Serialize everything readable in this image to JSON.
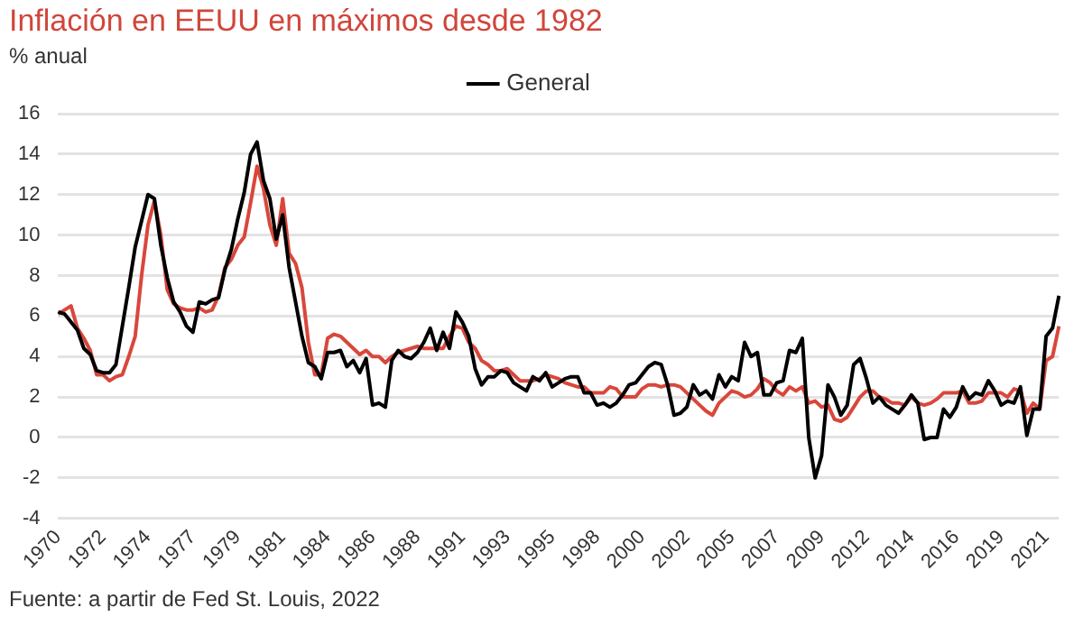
{
  "chart_data": {
    "type": "line",
    "title": "Inflación en EEUU en máximos desde 1982",
    "ylabel": "% anual",
    "annotations": [
      "Fuente: a partir de Fed St. Louis, 2022"
    ],
    "categories": [
      "1970",
      null,
      null,
      null,
      null,
      null,
      null,
      "1972",
      null,
      null,
      null,
      null,
      null,
      null,
      "1974",
      null,
      null,
      null,
      null,
      null,
      null,
      "1977",
      null,
      null,
      null,
      null,
      null,
      null,
      "1979",
      null,
      null,
      null,
      null,
      null,
      null,
      "1981",
      null,
      null,
      null,
      null,
      null,
      null,
      "1984",
      null,
      null,
      null,
      null,
      null,
      null,
      "1986",
      null,
      null,
      null,
      null,
      null,
      null,
      "1988",
      null,
      null,
      null,
      null,
      null,
      null,
      "1991",
      null,
      null,
      null,
      null,
      null,
      null,
      "1993",
      null,
      null,
      null,
      null,
      null,
      null,
      "1995",
      null,
      null,
      null,
      null,
      null,
      null,
      "1998",
      null,
      null,
      null,
      null,
      null,
      null,
      "2000",
      null,
      null,
      null,
      null,
      null,
      null,
      "2002",
      null,
      null,
      null,
      null,
      null,
      null,
      "2005",
      null,
      null,
      null,
      null,
      null,
      null,
      "2007",
      null,
      null,
      null,
      null,
      null,
      null,
      "2009",
      null,
      null,
      null,
      null,
      null,
      null,
      "2012",
      null,
      null,
      null,
      null,
      null,
      null,
      "2014",
      null,
      null,
      null,
      null,
      null,
      null,
      "2016",
      null,
      null,
      null,
      null,
      null,
      null,
      "2019",
      null,
      null,
      null,
      null,
      null,
      null,
      "2021",
      null,
      null
    ],
    "series": [
      {
        "name": "General",
        "color": "#000000",
        "values": [
          6.2,
          6.1,
          5.7,
          5.3,
          4.4,
          4.1,
          3.3,
          3.2,
          3.2,
          3.6,
          5.5,
          7.4,
          9.4,
          10.7,
          12.0,
          11.8,
          9.5,
          7.9,
          6.7,
          6.2,
          5.5,
          5.2,
          6.7,
          6.6,
          6.8,
          6.9,
          8.3,
          9.3,
          10.8,
          12.1,
          14.0,
          14.6,
          12.7,
          11.8,
          9.8,
          11.0,
          8.4,
          6.7,
          5.0,
          3.7,
          3.5,
          2.9,
          4.2,
          4.2,
          4.3,
          3.5,
          3.8,
          3.2,
          3.9,
          1.6,
          1.7,
          1.5,
          3.8,
          4.3,
          4.0,
          3.9,
          4.2,
          4.7,
          5.4,
          4.3,
          5.2,
          4.4,
          6.2,
          5.7,
          5.0,
          3.4,
          2.6,
          3.0,
          3.0,
          3.3,
          3.2,
          2.7,
          2.5,
          2.3,
          3.0,
          2.8,
          3.2,
          2.5,
          2.7,
          2.9,
          3.0,
          3.0,
          2.2,
          2.2,
          1.6,
          1.7,
          1.5,
          1.7,
          2.1,
          2.6,
          2.7,
          3.1,
          3.5,
          3.7,
          3.6,
          2.6,
          1.1,
          1.2,
          1.5,
          2.6,
          2.1,
          2.3,
          1.9,
          3.1,
          2.5,
          3.0,
          2.8,
          4.7,
          4.0,
          4.2,
          2.1,
          2.1,
          2.7,
          2.8,
          4.3,
          4.2,
          4.9,
          0.0,
          -2.0,
          -0.9,
          2.6,
          2.0,
          1.1,
          1.6,
          3.6,
          3.9,
          2.9,
          1.7,
          2.0,
          1.6,
          1.4,
          1.2,
          1.6,
          2.1,
          1.7,
          -0.1,
          0.0,
          0.0,
          1.4,
          1.0,
          1.5,
          2.5,
          1.9,
          2.2,
          2.1,
          2.8,
          2.3,
          1.6,
          1.8,
          1.7,
          2.5,
          0.1,
          1.4,
          1.4,
          5.0,
          5.4,
          7.0
        ]
      },
      {
        "color": "#d9473b",
        "values": [
          6.1,
          6.3,
          6.5,
          5.4,
          4.9,
          4.3,
          3.1,
          3.1,
          2.8,
          3.0,
          3.1,
          4.0,
          5.0,
          8.0,
          10.5,
          11.7,
          10.0,
          7.3,
          6.6,
          6.4,
          6.3,
          6.3,
          6.4,
          6.2,
          6.3,
          7.0,
          8.4,
          8.8,
          9.5,
          9.9,
          11.6,
          13.4,
          12.3,
          10.5,
          9.5,
          11.8,
          9.1,
          8.6,
          7.4,
          4.7,
          3.1,
          3.1,
          4.9,
          5.1,
          5.0,
          4.7,
          4.4,
          4.1,
          4.3,
          4.0,
          4.0,
          3.7,
          4.0,
          4.2,
          4.3,
          4.4,
          4.5,
          4.4,
          4.4,
          4.4,
          4.4,
          5.0,
          5.5,
          5.4,
          4.7,
          4.4,
          3.8,
          3.6,
          3.3,
          3.3,
          3.4,
          3.1,
          2.8,
          2.8,
          2.8,
          2.9,
          3.1,
          3.0,
          2.9,
          2.7,
          2.6,
          2.5,
          2.5,
          2.2,
          2.2,
          2.2,
          2.5,
          2.4,
          2.0,
          2.0,
          2.0,
          2.4,
          2.6,
          2.6,
          2.5,
          2.6,
          2.6,
          2.5,
          2.2,
          1.9,
          1.6,
          1.3,
          1.1,
          1.7,
          2.0,
          2.3,
          2.2,
          2.0,
          2.1,
          2.4,
          2.9,
          2.7,
          2.3,
          2.1,
          2.5,
          2.3,
          2.5,
          1.7,
          1.8,
          1.5,
          1.6,
          0.9,
          0.8,
          1.0,
          1.5,
          2.0,
          2.3,
          2.3,
          2.0,
          1.9,
          1.7,
          1.7,
          1.6,
          2.0,
          1.7,
          1.6,
          1.7,
          1.9,
          2.2,
          2.2,
          2.2,
          2.3,
          1.7,
          1.7,
          1.8,
          2.2,
          2.2,
          2.2,
          2.0,
          2.4,
          2.3,
          1.2,
          1.7,
          1.4,
          3.8,
          4.0,
          5.5
        ]
      }
    ],
    "ylim": [
      -4,
      16
    ],
    "yticks": [
      -4,
      -2,
      0,
      2,
      4,
      6,
      8,
      10,
      12,
      14,
      16
    ],
    "grid": "y",
    "legend": "top"
  }
}
